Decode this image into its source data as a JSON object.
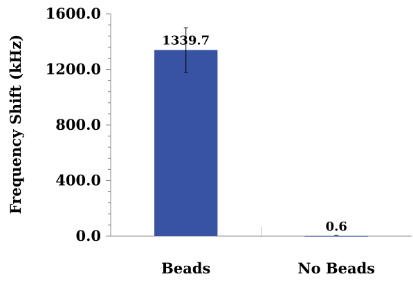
{
  "chart_data": {
    "type": "bar",
    "categories": [
      "Beads",
      "No Beads"
    ],
    "values": [
      1339.7,
      0.6
    ],
    "error": [
      160,
      0
    ],
    "data_labels": [
      "1339.7",
      "0.6"
    ],
    "title": "",
    "xlabel": "",
    "ylabel": "Frequency Shift (kHz)",
    "ylim": [
      0,
      1600
    ],
    "yticks": [
      0,
      400,
      800,
      1200,
      1600
    ],
    "ytick_labels": [
      "0.0",
      "400.0",
      "800.0",
      "1200.0",
      "1600.0"
    ],
    "bar_color": "#3953A4",
    "grid": false,
    "legend": "none"
  }
}
